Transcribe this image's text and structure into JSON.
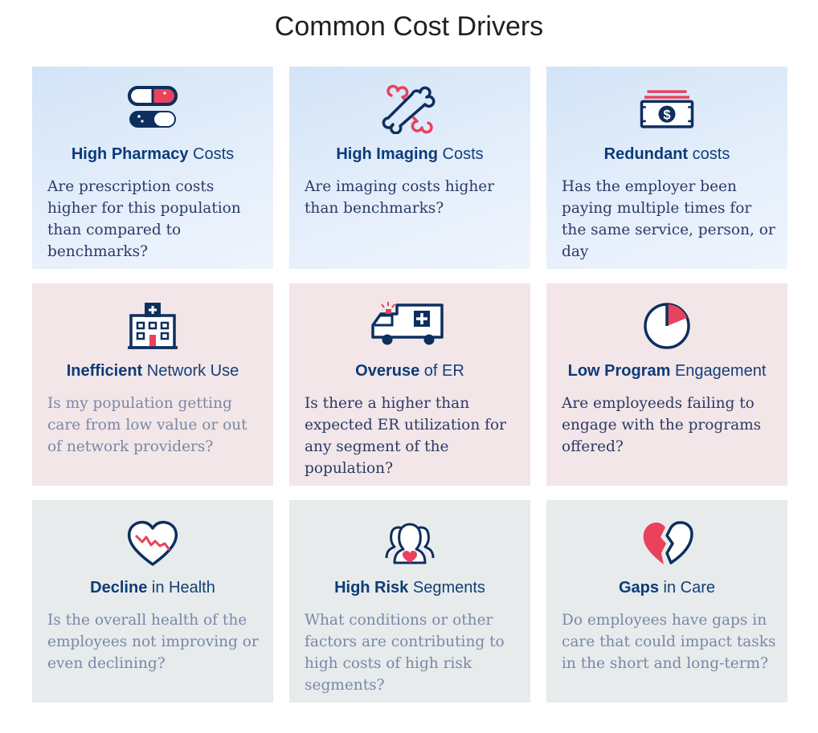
{
  "title": "Common Cost Drivers",
  "colors": {
    "navy": "#0d2f5e",
    "accent": "#e8425d"
  },
  "cards": [
    {
      "icon": "pills-icon",
      "title_bold": "High Pharmacy",
      "title_rest": " Costs",
      "text": "Are prescription costs higher for this population than compared to benchmarks?"
    },
    {
      "icon": "bone-icon",
      "title_bold": "High Imaging",
      "title_rest": " Costs",
      "text": "Are imaging costs higher than benchmarks?"
    },
    {
      "icon": "money-icon",
      "title_bold": "Redundant",
      "title_rest": " costs",
      "text": "Has the employer been paying multiple times for the same service, person, or day"
    },
    {
      "icon": "hospital-icon",
      "title_bold": "Inefficient",
      "title_rest": " Network Use",
      "text": "Is my population getting care from low value or out of network providers?"
    },
    {
      "icon": "ambulance-icon",
      "title_bold": "Overuse",
      "title_rest": " of ER",
      "text": "Is there a higher than expected ER utilization for any segment of the population?"
    },
    {
      "icon": "pie-timer-icon",
      "title_bold": "Low Program",
      "title_rest": " Engagement",
      "text": "Are employeeds failing to engage with the programs offered?"
    },
    {
      "icon": "heart-decline-icon",
      "title_bold": "Decline",
      "title_rest": " in Health",
      "text": "Is the overall health of the employees not improving or even declining?"
    },
    {
      "icon": "people-group-icon",
      "title_bold": "High Risk",
      "title_rest": " Segments",
      "text": "What conditions or other factors are contributing to high costs of high risk segments?"
    },
    {
      "icon": "broken-heart-icon",
      "title_bold": "Gaps",
      "title_rest": " in Care",
      "text": "Do employees have gaps in care that could impact tasks in the short and long-term?"
    }
  ]
}
